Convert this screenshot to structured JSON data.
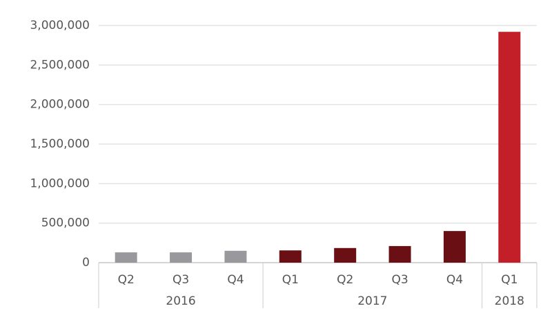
{
  "chart_data": {
    "type": "bar",
    "groups": [
      {
        "name": "2016",
        "categories": [
          "Q2",
          "Q3",
          "Q4"
        ],
        "values": [
          130000,
          130000,
          150000
        ],
        "color": "#99999d"
      },
      {
        "name": "2017",
        "categories": [
          "Q1",
          "Q2",
          "Q3",
          "Q4"
        ],
        "values": [
          155000,
          185000,
          210000,
          400000
        ],
        "color": "#6a0f14"
      },
      {
        "name": "2018",
        "categories": [
          "Q1"
        ],
        "values": [
          2920000
        ],
        "color": "#c21f28"
      }
    ],
    "ylim": [
      0,
      3000000
    ],
    "yticks": [
      0,
      {
        "value": 500000,
        "label": "500,000"
      },
      {
        "value": 1000000,
        "label": "1,000,000"
      },
      {
        "value": 1500000,
        "label": "1,500,000"
      },
      {
        "value": 2000000,
        "label": "2,000,000"
      },
      {
        "value": 2500000,
        "label": "2,500,000"
      },
      {
        "value": 3000000,
        "label": "3,000,000"
      }
    ],
    "grid": true
  }
}
